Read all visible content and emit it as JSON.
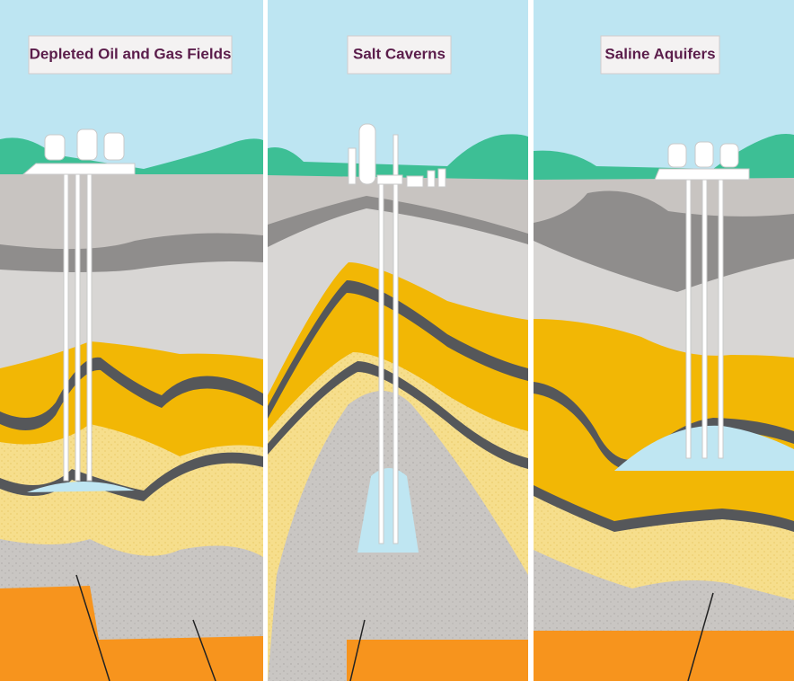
{
  "panels": [
    {
      "label": "Depleted Oil and Gas Fields"
    },
    {
      "label": "Salt Caverns"
    },
    {
      "label": "Saline Aquifers"
    }
  ]
}
